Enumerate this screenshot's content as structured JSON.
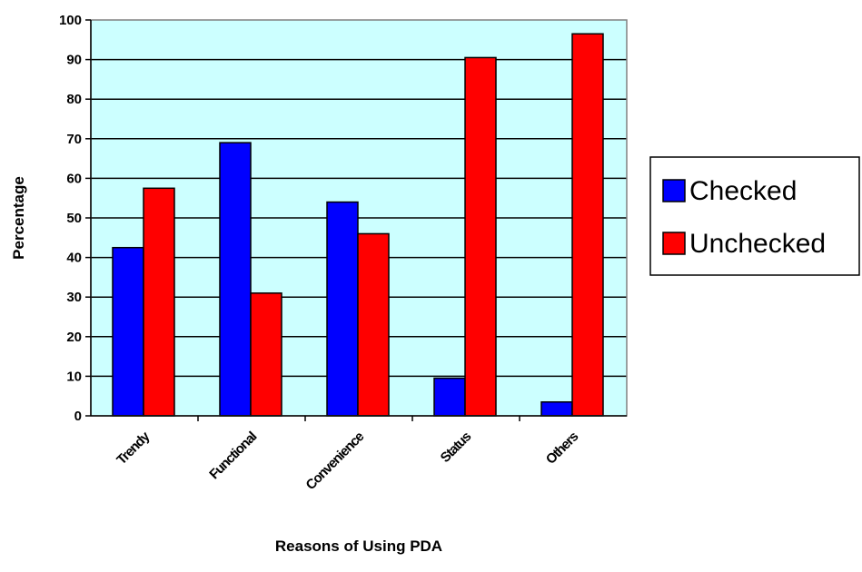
{
  "chart_data": {
    "type": "bar",
    "title": "",
    "xlabel": "Reasons of Using PDA",
    "ylabel": "Percentage",
    "categories": [
      "Trendy",
      "Functional",
      "Convenience",
      "Status",
      "Others"
    ],
    "series": [
      {
        "name": "Checked",
        "values": [
          42.5,
          69,
          54,
          9.5,
          3.5
        ],
        "color": "#0000ff"
      },
      {
        "name": "Unchecked",
        "values": [
          57.5,
          31,
          46,
          90.5,
          96.5
        ],
        "color": "#ff0000"
      }
    ],
    "ylim": [
      0,
      100
    ],
    "yticks": [
      "0",
      "10",
      "20",
      "30",
      "40",
      "50",
      "60",
      "70",
      "80",
      "90",
      "100"
    ],
    "grid": true,
    "plot_background": "#ccffff",
    "legend": "right"
  }
}
